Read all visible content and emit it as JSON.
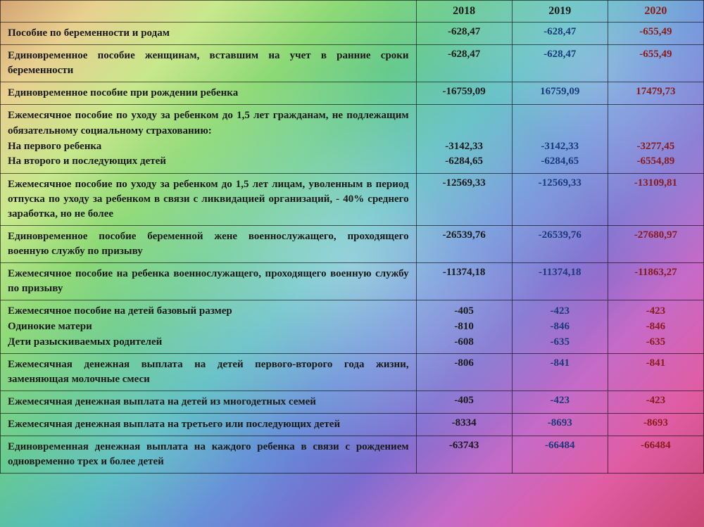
{
  "headers": {
    "c1": "",
    "c2": "2018",
    "c3": "2019",
    "c4": "2020"
  },
  "rows": [
    {
      "label": "Пособие по беременности и родам",
      "v18": "-628,47",
      "v19": "-628,47",
      "v20": "-655,49",
      "justify": false
    },
    {
      "label": "Единовременное пособие женщинам, вставшим на учет в ранние сроки беременности",
      "v18": "-628,47",
      "v19": "-628,47",
      "v20": "-655,49",
      "justify": true
    },
    {
      "label": "Единовременное пособие при рождении ребенка",
      "v18": "-16759,09",
      "v19": "16759,09",
      "v20": "17479,73",
      "justify": false
    },
    {
      "label": "Ежемесячное пособие по уходу за ребенком до 1,5 лет гражданам, не подлежащим обязательному социальному страхованию:\nНа первого ребенка\nНа второго и последующих детей",
      "v18": "\n\n-3142,33\n-6284,65",
      "v19": "\n\n-3142,33\n-6284,65",
      "v20": "\n\n-3277,45\n-6554,89",
      "justify": true,
      "ml": true
    },
    {
      "label": "Ежемесячное пособие по уходу за ребенком до 1,5 лет лицам, уволенным в период отпуска по уходу за ребенком в связи с ликвидацией организаций, - 40% среднего заработка, но не более",
      "v18": "-12569,33",
      "v19": "-12569,33",
      "v20": "-13109,81",
      "justify": true
    },
    {
      "label": "Единовременное пособие беременной жене военнослужащего, проходящего военную службу по призыву",
      "v18": "-26539,76",
      "v19": "-26539,76",
      "v20": "-27680,97",
      "justify": true
    },
    {
      "label": "Ежемесячное пособие на ребенка военнослужащего, проходящего военную службу по призыву",
      "v18": "-11374,18",
      "v19": "-11374,18",
      "v20": "-11863,27",
      "justify": true
    },
    {
      "label": "Ежемесячное пособие на детей базовый размер\nОдинокие матери\nДети разыскиваемых родителей",
      "v18": "-405\n-810\n-608",
      "v19": "-423\n-846\n-635",
      "v20": "-423\n-846\n-635",
      "justify": false,
      "ml": true
    },
    {
      "label": "Ежемесячная денежная выплата на детей первого-второго года жизни, заменяющая молочные смеси",
      "v18": "-806",
      "v19": "-841",
      "v20": "-841",
      "justify": true
    },
    {
      "label": "Ежемесячная денежная выплата на детей из многодетных семей",
      "v18": "-405",
      "v19": "-423",
      "v20": "-423",
      "justify": true
    },
    {
      "label": "Ежемесячная денежная выплата на третьего или последующих детей",
      "v18": "-8334",
      "v19": "-8693",
      "v20": "-8693",
      "justify": true
    },
    {
      "label": "Единовременная денежная выплата на каждого ребенка в связи с рождением одновременно трех и более детей",
      "v18": "-63743",
      "v19": "-66484",
      "v20": "-66484",
      "justify": true
    }
  ],
  "style": {
    "color_2018": "#1a1a1a",
    "color_2019": "#1a3a7a",
    "color_2020": "#8b1a1a",
    "font": "Georgia, Times New Roman, serif",
    "border_color": "rgba(0,0,0,0.6)"
  }
}
